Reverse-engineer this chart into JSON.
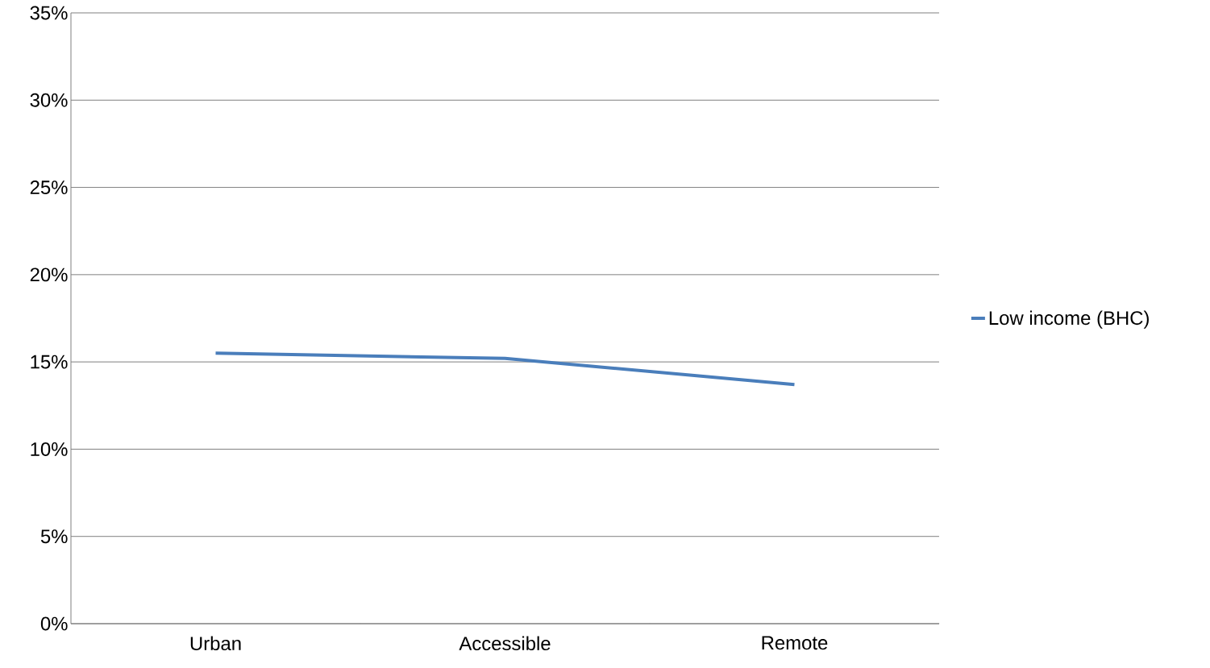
{
  "chart_data": {
    "type": "line",
    "categories": [
      "Urban",
      "Accessible",
      "Remote"
    ],
    "series": [
      {
        "name": "Low income (BHC)",
        "color": "#4a7ebb",
        "values": [
          15.5,
          15.2,
          13.7
        ]
      }
    ],
    "ylim": [
      0,
      35
    ],
    "yticks": [
      {
        "value": 0,
        "label": "0%"
      },
      {
        "value": 5,
        "label": "5%"
      },
      {
        "value": 10,
        "label": "10%"
      },
      {
        "value": 15,
        "label": "15%"
      },
      {
        "value": 20,
        "label": "20%"
      },
      {
        "value": 25,
        "label": "25%"
      },
      {
        "value": 30,
        "label": "30%"
      },
      {
        "value": 35,
        "label": "35%"
      }
    ],
    "grid": "y",
    "legend": "right"
  }
}
